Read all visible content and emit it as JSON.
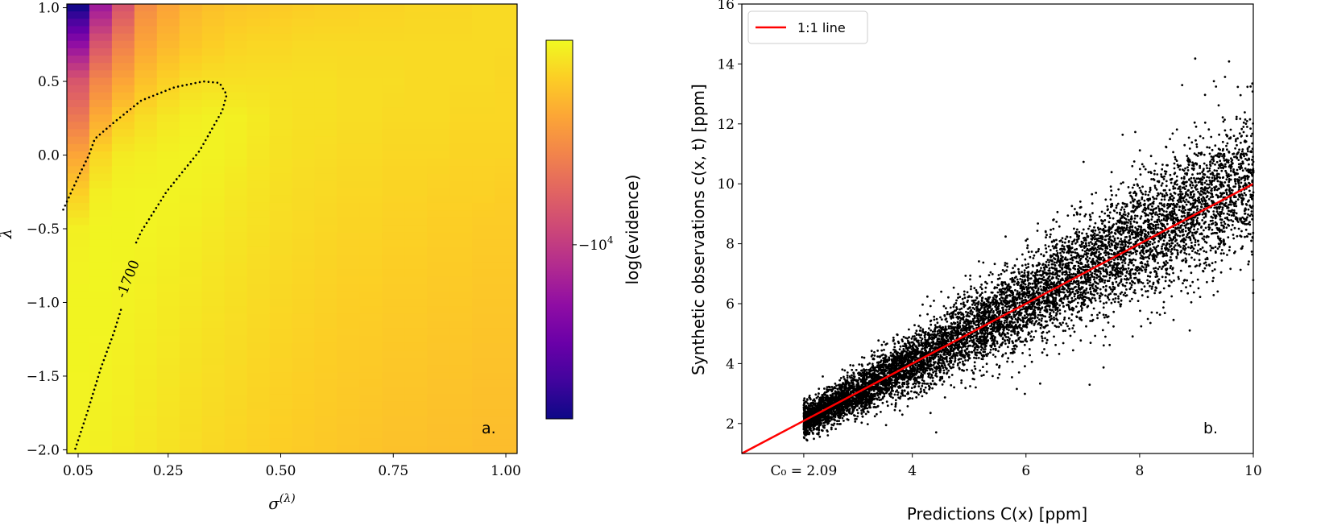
{
  "chart_data": [
    {
      "type": "heatmap",
      "panel_label": "a.",
      "xlabel": "σ",
      "xlabel_superscript": "(λ)",
      "ylabel": "λ",
      "xlim": [
        0.025,
        1.025
      ],
      "ylim": [
        -2.025,
        1.025
      ],
      "x_ticks": [
        0.05,
        0.25,
        0.5,
        0.75,
        1.0
      ],
      "x_tick_labels": [
        "0.05",
        "0.25",
        "0.50",
        "0.75",
        "1.00"
      ],
      "y_ticks": [
        1.0,
        0.5,
        0.0,
        -0.5,
        -1.0,
        -1.5,
        -2.0
      ],
      "y_tick_labels": [
        "1.0",
        "0.5",
        "0.0",
        "−0.5",
        "−1.0",
        "−1.5",
        "−2.0"
      ],
      "colormap": "plasma",
      "sigma": [
        0.05,
        0.1,
        0.15,
        0.2,
        0.25,
        0.3,
        0.35,
        0.4,
        0.45,
        0.5,
        0.55,
        0.6,
        0.65,
        0.7,
        0.75,
        0.8,
        0.85,
        0.9,
        0.95,
        1.0
      ],
      "lambda": [
        1.0,
        0.75,
        0.5,
        0.25,
        0.0,
        -0.25,
        -0.5,
        -0.75,
        -1.0,
        -1.25,
        -1.5,
        -1.75,
        -2.0
      ],
      "values": [
        [
          -45000,
          -14500,
          -7300,
          -4000,
          -3200,
          -2700,
          -2500,
          -2400,
          -2350,
          -2300,
          -2250,
          -2200,
          -2200,
          -2150,
          -2150,
          -2100,
          -2100,
          -2100,
          -2050,
          -2050
        ],
        [
          -17000,
          -7300,
          -4600,
          -3200,
          -2700,
          -2400,
          -2250,
          -2150,
          -2100,
          -2100,
          -2050,
          -2050,
          -2050,
          -2050,
          -2050,
          -2050,
          -2050,
          -2050,
          -2050,
          -2050
        ],
        [
          -7300,
          -4300,
          -3200,
          -2500,
          -2200,
          -2000,
          -1950,
          -1950,
          -1950,
          -1950,
          -1950,
          -1950,
          -2000,
          -2000,
          -2000,
          -2050,
          -2050,
          -2050,
          -2050,
          -2100
        ],
        [
          -5000,
          -3000,
          -2250,
          -2000,
          -1850,
          -1750,
          -1700,
          -1720,
          -1800,
          -1900,
          -1950,
          -1950,
          -2000,
          -2000,
          -2050,
          -2050,
          -2050,
          -2100,
          -2100,
          -2100
        ],
        [
          -3200,
          -2100,
          -1800,
          -1750,
          -1700,
          -1680,
          -1690,
          -1750,
          -1850,
          -1920,
          -1970,
          -2000,
          -2050,
          -2050,
          -2100,
          -2100,
          -2100,
          -2150,
          -2150,
          -2150
        ],
        [
          -2250,
          -1750,
          -1680,
          -1670,
          -1680,
          -1700,
          -1750,
          -1830,
          -1900,
          -1970,
          -2020,
          -2050,
          -2100,
          -2100,
          -2150,
          -2150,
          -2200,
          -2200,
          -2200,
          -2250
        ],
        [
          -1720,
          -1660,
          -1660,
          -1670,
          -1700,
          -1760,
          -1820,
          -1880,
          -1950,
          -2000,
          -2050,
          -2100,
          -2150,
          -2150,
          -2200,
          -2200,
          -2250,
          -2250,
          -2300,
          -2300
        ],
        [
          -1680,
          -1650,
          -1670,
          -1700,
          -1750,
          -1800,
          -1870,
          -1930,
          -2000,
          -2050,
          -2100,
          -2150,
          -2200,
          -2200,
          -2250,
          -2250,
          -2300,
          -2300,
          -2350,
          -2350
        ],
        [
          -1660,
          -1660,
          -1690,
          -1730,
          -1790,
          -1850,
          -1910,
          -1970,
          -2040,
          -2090,
          -2140,
          -2190,
          -2240,
          -2250,
          -2300,
          -2300,
          -2350,
          -2350,
          -2400,
          -2400
        ],
        [
          -1660,
          -1670,
          -1710,
          -1760,
          -1820,
          -1890,
          -1950,
          -2010,
          -2080,
          -2130,
          -2180,
          -2230,
          -2280,
          -2300,
          -2350,
          -2350,
          -2400,
          -2400,
          -2450,
          -2450
        ],
        [
          -1670,
          -1690,
          -1730,
          -1790,
          -1860,
          -1930,
          -1990,
          -2050,
          -2120,
          -2170,
          -2220,
          -2270,
          -2320,
          -2350,
          -2400,
          -2400,
          -2450,
          -2450,
          -2500,
          -2500
        ],
        [
          -1680,
          -1700,
          -1750,
          -1820,
          -1890,
          -1960,
          -2030,
          -2090,
          -2160,
          -2210,
          -2260,
          -2310,
          -2360,
          -2400,
          -2450,
          -2450,
          -2500,
          -2500,
          -2550,
          -2550
        ],
        [
          -1690,
          -1720,
          -1780,
          -1850,
          -1920,
          -2000,
          -2070,
          -2130,
          -2200,
          -2250,
          -2300,
          -2350,
          -2400,
          -2450,
          -2500,
          -2500,
          -2550,
          -2550,
          -2600,
          -2600
        ]
      ],
      "contour": {
        "level": -1700,
        "label": "-1700",
        "style": "dotted",
        "points": [
          [
            0.017,
            -0.37
          ],
          [
            0.05,
            -0.15
          ],
          [
            0.074,
            0.0
          ],
          [
            0.087,
            0.11
          ],
          [
            0.129,
            0.22
          ],
          [
            0.19,
            0.37
          ],
          [
            0.264,
            0.46
          ],
          [
            0.328,
            0.5
          ],
          [
            0.364,
            0.49
          ],
          [
            0.38,
            0.41
          ],
          [
            0.37,
            0.3
          ],
          [
            0.32,
            0.03
          ],
          [
            0.246,
            -0.25
          ],
          [
            0.19,
            -0.52
          ],
          [
            0.175,
            -0.62
          ],
          [
            0.145,
            -1.05
          ],
          [
            0.13,
            -1.2
          ],
          [
            0.1,
            -1.45
          ],
          [
            0.07,
            -1.75
          ],
          [
            0.043,
            -2.0
          ]
        ]
      },
      "colorbar": {
        "label": "log(evidence)",
        "scale": "log",
        "range": [
          -47600,
          -1600
        ],
        "ticks": [
          -10000
        ],
        "tick_label_base": "−10",
        "tick_label_exp": "4"
      }
    },
    {
      "type": "scatter",
      "panel_label": "b.",
      "xlabel": "Predictions C(x) [ppm]",
      "ylabel": "Synthetic observations c(x, t) [ppm]",
      "xlim": [
        1,
        10
      ],
      "ylim": [
        1,
        16
      ],
      "x_ticks": [
        2.09,
        4,
        6,
        8,
        10
      ],
      "x_tick_labels": [
        "C₀ = 2.09",
        "4",
        "6",
        "8",
        "10"
      ],
      "y_ticks": [
        2,
        4,
        6,
        8,
        10,
        12,
        14,
        16
      ],
      "y_tick_labels": [
        "2",
        "4",
        "6",
        "8",
        "10",
        "12",
        "14",
        "16"
      ],
      "points": {
        "count": 9000,
        "x_range": [
          2.09,
          10
        ],
        "color": "#000000",
        "relative_spread": 0.12
      },
      "reference_line": {
        "name": "1:1 line",
        "slope": 1,
        "intercept": 0,
        "color": "#ff0000"
      },
      "legend": {
        "position": "top-left",
        "entries": [
          "1:1 line"
        ]
      }
    }
  ]
}
